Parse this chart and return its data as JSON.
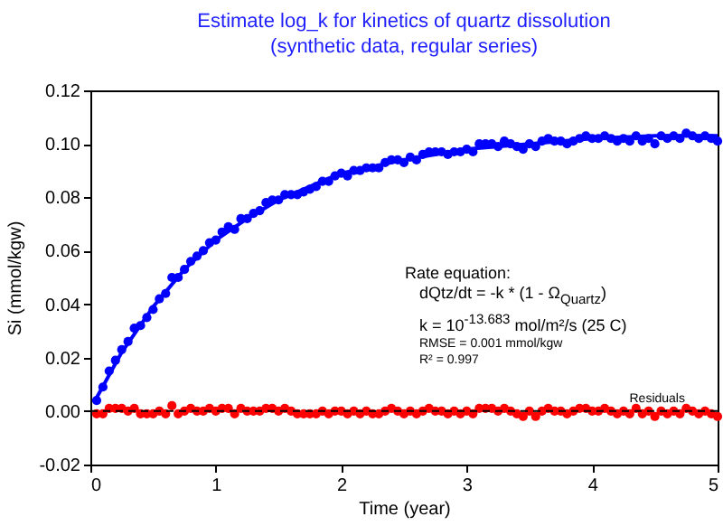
{
  "chart_data": {
    "type": "scatter",
    "title": "Estimate log_k for kinetics of quartz dissolution",
    "subtitle": "(synthetic data, regular series)",
    "xlabel": "Time (year)",
    "ylabel": "Si (mmol/kgw)",
    "x": [
      0.05,
      0.1,
      0.15,
      0.2,
      0.25,
      0.3,
      0.35,
      0.4,
      0.45,
      0.5,
      0.55,
      0.6,
      0.65,
      0.7,
      0.75,
      0.8,
      0.85,
      0.9,
      0.95,
      1.0,
      1.05,
      1.1,
      1.15,
      1.2,
      1.25,
      1.3,
      1.35,
      1.4,
      1.45,
      1.5,
      1.55,
      1.6,
      1.65,
      1.7,
      1.75,
      1.8,
      1.85,
      1.9,
      1.95,
      2.0,
      2.05,
      2.1,
      2.15,
      2.2,
      2.25,
      2.3,
      2.35,
      2.4,
      2.45,
      2.5,
      2.55,
      2.6,
      2.65,
      2.7,
      2.75,
      2.8,
      2.85,
      2.9,
      2.95,
      3.0,
      3.05,
      3.1,
      3.15,
      3.2,
      3.25,
      3.3,
      3.35,
      3.4,
      3.45,
      3.5,
      3.55,
      3.6,
      3.65,
      3.7,
      3.75,
      3.8,
      3.85,
      3.9,
      3.95,
      4.0,
      4.05,
      4.1,
      4.15,
      4.2,
      4.25,
      4.3,
      4.35,
      4.4,
      4.45,
      4.5,
      4.55,
      4.6,
      4.65,
      4.7,
      4.75,
      4.8,
      4.85,
      4.9,
      4.95,
      5.0
    ],
    "series": [
      {
        "color": "#0000ff",
        "marker": "circle",
        "values": [
          0.004,
          0.009,
          0.015,
          0.019,
          0.023,
          0.026,
          0.031,
          0.032,
          0.035,
          0.038,
          0.042,
          0.044,
          0.05,
          0.05,
          0.053,
          0.056,
          0.058,
          0.06,
          0.063,
          0.064,
          0.067,
          0.069,
          0.068,
          0.072,
          0.072,
          0.074,
          0.075,
          0.078,
          0.079,
          0.079,
          0.081,
          0.081,
          0.081,
          0.082,
          0.083,
          0.084,
          0.086,
          0.086,
          0.088,
          0.089,
          0.088,
          0.09,
          0.09,
          0.091,
          0.091,
          0.091,
          0.093,
          0.094,
          0.094,
          0.093,
          0.095,
          0.094,
          0.096,
          0.097,
          0.097,
          0.097,
          0.096,
          0.097,
          0.097,
          0.098,
          0.097,
          0.1,
          0.1,
          0.1,
          0.099,
          0.101,
          0.1,
          0.099,
          0.098,
          0.1,
          0.099,
          0.101,
          0.102,
          0.101,
          0.101,
          0.1,
          0.101,
          0.102,
          0.103,
          0.102,
          0.102,
          0.103,
          0.102,
          0.101,
          0.102,
          0.101,
          0.103,
          0.101,
          0.102,
          0.1,
          0.103,
          0.102,
          0.103,
          0.102,
          0.104,
          0.103,
          0.102,
          0.103,
          0.102,
          0.101
        ]
      },
      {
        "type": "line",
        "color": "#0000ff",
        "marker": "none",
        "x": [
          0.05,
          0.25,
          0.5,
          0.75,
          1,
          1.25,
          1.5,
          1.75,
          2,
          2.5,
          3,
          3.5,
          4,
          4.5,
          5
        ],
        "values": [
          0.005,
          0.022,
          0.039,
          0.053,
          0.064,
          0.072,
          0.079,
          0.084,
          0.089,
          0.094,
          0.098,
          0.1,
          0.102,
          0.103,
          0.103
        ]
      },
      {
        "color": "#ff0000",
        "marker": "circle",
        "values": [
          -0.001,
          -0.001,
          0.001,
          0.001,
          0.001,
          0,
          0.001,
          -0.001,
          -0.001,
          -0.001,
          0,
          -0.001,
          0.002,
          -0.001,
          0,
          0.001,
          0,
          0,
          0.001,
          0,
          0.001,
          0.001,
          -0.001,
          0.001,
          0,
          0,
          0,
          0.001,
          0.001,
          0,
          0.001,
          0,
          -0.001,
          -0.001,
          -0.001,
          -0.001,
          0,
          -0.001,
          0,
          0,
          -0.001,
          0,
          -0.001,
          0,
          -0.001,
          -0.001,
          0,
          0.001,
          0,
          -0.001,
          0,
          -0.001,
          0,
          0.001,
          0,
          0,
          -0.001,
          0,
          -0.001,
          0,
          -0.001,
          0.001,
          0.001,
          0.001,
          0,
          0.001,
          0,
          -0.001,
          -0.002,
          0,
          -0.002,
          0,
          0.001,
          0,
          0,
          -0.001,
          0,
          0.001,
          0.001,
          0,
          0,
          0.001,
          0,
          -0.001,
          0,
          -0.001,
          0.001,
          -0.001,
          0,
          -0.002,
          0,
          -0.001,
          0,
          -0.001,
          0.001,
          0,
          -0.001,
          0,
          -0.001,
          -0.002
        ]
      }
    ],
    "ref_lines": [
      {
        "axis": "y",
        "value": 0,
        "label": "Residuals",
        "color": "#000000",
        "line_style": "dashed"
      }
    ],
    "annotations": [
      "Rate equation:",
      "dQtz/dt = -k * (1 - Ω$_{Quartz}$)",
      "k = 10$^{-13.683}$ mol/m²/s (25 C)",
      "RMSE = 0.001 mmol/kgw",
      "R² = 0.997"
    ],
    "xlim": [
      0,
      5
    ],
    "xticks": [
      0,
      1,
      2,
      3,
      4,
      5
    ],
    "ylim": [
      -0.02,
      0.12
    ],
    "yticks": [
      {
        "value": -0.02,
        "label": "-0.02"
      },
      {
        "value": 0,
        "label": "0.00"
      },
      {
        "value": 0.02,
        "label": "0.02"
      },
      {
        "value": 0.04,
        "label": "0.04"
      },
      {
        "value": 0.06,
        "label": "0.06"
      },
      {
        "value": 0.08,
        "label": "0.08"
      },
      {
        "value": 0.1,
        "label": "0.10"
      },
      {
        "value": 0.12,
        "label": "0.12"
      }
    ]
  }
}
